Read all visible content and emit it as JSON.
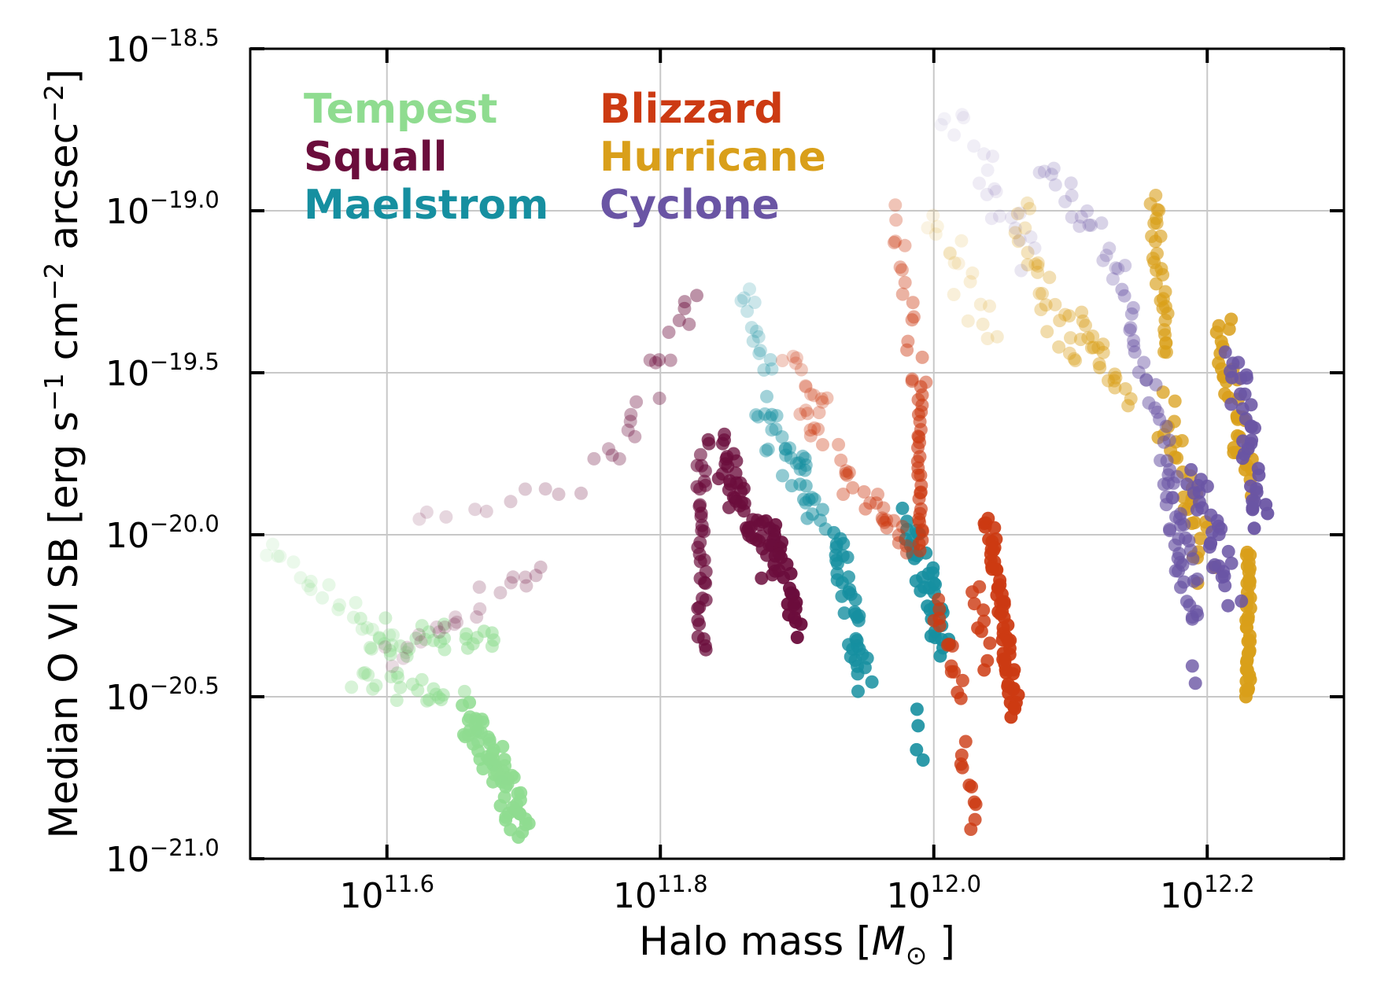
{
  "chart_data": {
    "type": "scatter",
    "xlabel": "Halo mass [",
    "xlabel_symbol": "M",
    "xlabel_subscript": "⊙",
    "xlabel_close": "]",
    "ylabel_parts": {
      "main": "Median O VI SB [erg s",
      "exp1": "−1",
      "mid1": " cm",
      "exp2": "−2",
      "mid2": " arcsec",
      "exp3": "−2",
      "close": "]"
    },
    "xlim": [
      11.5,
      12.3
    ],
    "ylim": [
      -21.0,
      -18.5
    ],
    "x_scale": "log10",
    "y_scale": "log10",
    "x_ticks": [
      {
        "value": 11.6,
        "base": "10",
        "exp": "11.6"
      },
      {
        "value": 11.8,
        "base": "10",
        "exp": "11.8"
      },
      {
        "value": 12.0,
        "base": "10",
        "exp": "12.0"
      },
      {
        "value": 12.2,
        "base": "10",
        "exp": "12.2"
      }
    ],
    "y_ticks": [
      {
        "value": -18.5,
        "base": "10",
        "exp": "−18.5"
      },
      {
        "value": -19.0,
        "base": "10",
        "exp": "−19.0"
      },
      {
        "value": -19.5,
        "base": "10",
        "exp": "−19.5"
      },
      {
        "value": -20.0,
        "base": "10",
        "exp": "−20.0"
      },
      {
        "value": -20.5,
        "base": "10",
        "exp": "−20.5"
      },
      {
        "value": -21.0,
        "base": "10",
        "exp": "−21.0"
      }
    ],
    "grid": true,
    "legend_placement": "top-left",
    "series": [
      {
        "name": "Tempest",
        "color": "#8fdc90",
        "tracks": [
          {
            "x0": 11.51,
            "y0": -20.05,
            "x1": 11.61,
            "y1": -20.35,
            "alpha0": 0.15,
            "alpha1": 0.3,
            "n": 22,
            "scatter": 0.07
          },
          {
            "x0": 11.58,
            "y0": -20.3,
            "x1": 11.68,
            "y1": -20.35,
            "alpha0": 0.35,
            "alpha1": 0.55,
            "n": 30,
            "scatter": 0.12
          },
          {
            "x0": 11.58,
            "y0": -20.45,
            "x1": 11.65,
            "y1": -20.5,
            "alpha0": 0.35,
            "alpha1": 0.5,
            "n": 22,
            "scatter": 0.08
          },
          {
            "x0": 11.66,
            "y0": -20.55,
            "x1": 11.7,
            "y1": -20.9,
            "alpha0": 0.85,
            "alpha1": 0.9,
            "n": 70,
            "scatter": 0.1
          }
        ]
      },
      {
        "name": "Squall",
        "color": "#6b0d3c",
        "tracks": [
          {
            "x0": 11.6,
            "y0": -20.4,
            "x1": 11.71,
            "y1": -20.1,
            "alpha0": 0.15,
            "alpha1": 0.25,
            "n": 22,
            "scatter": 0.08
          },
          {
            "x0": 11.62,
            "y0": -19.95,
            "x1": 11.74,
            "y1": -19.85,
            "alpha0": 0.15,
            "alpha1": 0.25,
            "n": 10,
            "scatter": 0.05
          },
          {
            "x0": 11.76,
            "y0": -19.8,
            "x1": 11.83,
            "y1": -19.25,
            "alpha0": 0.3,
            "alpha1": 0.45,
            "n": 20,
            "scatter": 0.1
          },
          {
            "x0": 11.83,
            "y0": -19.75,
            "x1": 11.83,
            "y1": -20.35,
            "alpha0": 0.6,
            "alpha1": 0.75,
            "n": 34,
            "scatter": 0.04
          },
          {
            "x0": 11.84,
            "y0": -19.7,
            "x1": 11.88,
            "y1": -20.1,
            "alpha0": 0.75,
            "alpha1": 0.85,
            "n": 50,
            "scatter": 0.1
          },
          {
            "x0": 11.88,
            "y0": -19.95,
            "x1": 11.9,
            "y1": -20.3,
            "alpha0": 0.9,
            "alpha1": 0.95,
            "n": 30,
            "scatter": 0.05
          }
        ]
      },
      {
        "name": "Maelstrom",
        "color": "#168fa0",
        "tracks": [
          {
            "x0": 11.86,
            "y0": -19.25,
            "x1": 11.88,
            "y1": -19.5,
            "alpha0": 0.2,
            "alpha1": 0.3,
            "n": 14,
            "scatter": 0.06
          },
          {
            "x0": 11.87,
            "y0": -19.6,
            "x1": 11.92,
            "y1": -19.95,
            "alpha0": 0.4,
            "alpha1": 0.55,
            "n": 38,
            "scatter": 0.1
          },
          {
            "x0": 11.93,
            "y0": -20.0,
            "x1": 11.95,
            "y1": -20.45,
            "alpha0": 0.75,
            "alpha1": 0.85,
            "n": 40,
            "scatter": 0.07
          },
          {
            "x0": 11.98,
            "y0": -19.95,
            "x1": 12.01,
            "y1": -20.35,
            "alpha0": 0.85,
            "alpha1": 0.9,
            "n": 42,
            "scatter": 0.08
          },
          {
            "x0": 11.99,
            "y0": -20.55,
            "x1": 11.99,
            "y1": -20.7,
            "alpha0": 0.9,
            "alpha1": 0.9,
            "n": 4,
            "scatter": 0.03
          }
        ]
      },
      {
        "name": "Blizzard",
        "color": "#cc3a12",
        "tracks": [
          {
            "x0": 11.89,
            "y0": -19.45,
            "x1": 11.92,
            "y1": -19.6,
            "alpha0": 0.25,
            "alpha1": 0.3,
            "n": 12,
            "scatter": 0.05
          },
          {
            "x0": 11.9,
            "y0": -19.6,
            "x1": 11.96,
            "y1": -19.95,
            "alpha0": 0.3,
            "alpha1": 0.45,
            "n": 22,
            "scatter": 0.09
          },
          {
            "x0": 11.96,
            "y0": -19.9,
            "x1": 11.98,
            "y1": -20.05,
            "alpha0": 0.4,
            "alpha1": 0.5,
            "n": 12,
            "scatter": 0.06
          },
          {
            "x0": 11.97,
            "y0": -19.0,
            "x1": 11.99,
            "y1": -19.55,
            "alpha0": 0.3,
            "alpha1": 0.5,
            "n": 18,
            "scatter": 0.07
          },
          {
            "x0": 11.99,
            "y0": -19.55,
            "x1": 11.99,
            "y1": -20.05,
            "alpha0": 0.55,
            "alpha1": 0.7,
            "n": 30,
            "scatter": 0.02
          },
          {
            "x0": 12.0,
            "y0": -20.2,
            "x1": 12.02,
            "y1": -20.5,
            "alpha0": 0.75,
            "alpha1": 0.8,
            "n": 14,
            "scatter": 0.05
          },
          {
            "x0": 12.02,
            "y0": -20.65,
            "x1": 12.03,
            "y1": -20.9,
            "alpha0": 0.8,
            "alpha1": 0.8,
            "n": 10,
            "scatter": 0.04
          },
          {
            "x0": 12.03,
            "y0": -20.15,
            "x1": 12.04,
            "y1": -20.4,
            "alpha0": 0.8,
            "alpha1": 0.85,
            "n": 10,
            "scatter": 0.04
          },
          {
            "x0": 12.04,
            "y0": -19.95,
            "x1": 12.06,
            "y1": -20.55,
            "alpha0": 0.9,
            "alpha1": 0.95,
            "n": 60,
            "scatter": 0.04
          }
        ]
      },
      {
        "name": "Hurricane",
        "color": "#d99f1a",
        "tracks": [
          {
            "x0": 12.0,
            "y0": -19.0,
            "x1": 12.04,
            "y1": -19.4,
            "alpha0": 0.12,
            "alpha1": 0.2,
            "n": 18,
            "scatter": 0.1
          },
          {
            "x0": 12.06,
            "y0": -19.0,
            "x1": 12.1,
            "y1": -19.45,
            "alpha0": 0.25,
            "alpha1": 0.4,
            "n": 26,
            "scatter": 0.1
          },
          {
            "x0": 12.1,
            "y0": -19.3,
            "x1": 12.14,
            "y1": -19.6,
            "alpha0": 0.4,
            "alpha1": 0.5,
            "n": 22,
            "scatter": 0.08
          },
          {
            "x0": 12.16,
            "y0": -18.95,
            "x1": 12.17,
            "y1": -19.45,
            "alpha0": 0.6,
            "alpha1": 0.7,
            "n": 30,
            "scatter": 0.04
          },
          {
            "x0": 12.17,
            "y0": -19.6,
            "x1": 12.2,
            "y1": -20.1,
            "alpha0": 0.75,
            "alpha1": 0.85,
            "n": 30,
            "scatter": 0.1
          },
          {
            "x0": 12.21,
            "y0": -19.35,
            "x1": 12.23,
            "y1": -19.85,
            "alpha0": 0.85,
            "alpha1": 0.9,
            "n": 35,
            "scatter": 0.08
          },
          {
            "x0": 12.23,
            "y0": -20.05,
            "x1": 12.23,
            "y1": -20.5,
            "alpha0": 0.9,
            "alpha1": 0.95,
            "n": 40,
            "scatter": 0.02
          }
        ]
      },
      {
        "name": "Cyclone",
        "color": "#6a55a4",
        "tracks": [
          {
            "x0": 12.01,
            "y0": -18.7,
            "x1": 12.07,
            "y1": -19.15,
            "alpha0": 0.08,
            "alpha1": 0.15,
            "n": 22,
            "scatter": 0.12
          },
          {
            "x0": 12.08,
            "y0": -18.85,
            "x1": 12.14,
            "y1": -19.2,
            "alpha0": 0.2,
            "alpha1": 0.3,
            "n": 22,
            "scatter": 0.08
          },
          {
            "x0": 12.14,
            "y0": -19.25,
            "x1": 12.17,
            "y1": -19.75,
            "alpha0": 0.4,
            "alpha1": 0.55,
            "n": 22,
            "scatter": 0.05
          },
          {
            "x0": 12.17,
            "y0": -19.8,
            "x1": 12.19,
            "y1": -20.25,
            "alpha0": 0.6,
            "alpha1": 0.75,
            "n": 40,
            "scatter": 0.08
          },
          {
            "x0": 12.19,
            "y0": -19.8,
            "x1": 12.22,
            "y1": -20.2,
            "alpha0": 0.85,
            "alpha1": 0.85,
            "n": 30,
            "scatter": 0.08
          },
          {
            "x0": 12.22,
            "y0": -19.45,
            "x1": 12.24,
            "y1": -19.95,
            "alpha0": 0.85,
            "alpha1": 0.95,
            "n": 35,
            "scatter": 0.08
          },
          {
            "x0": 12.19,
            "y0": -20.4,
            "x1": 12.19,
            "y1": -20.45,
            "alpha0": 0.8,
            "alpha1": 0.8,
            "n": 2,
            "scatter": 0.02
          }
        ]
      }
    ],
    "legend": [
      {
        "label": "Tempest",
        "color": "#8fdc90"
      },
      {
        "label": "Squall",
        "color": "#6b0d3c"
      },
      {
        "label": "Maelstrom",
        "color": "#168fa0"
      },
      {
        "label": "Blizzard",
        "color": "#cc3a12"
      },
      {
        "label": "Hurricane",
        "color": "#d99f1a"
      },
      {
        "label": "Cyclone",
        "color": "#6a55a4"
      }
    ]
  }
}
